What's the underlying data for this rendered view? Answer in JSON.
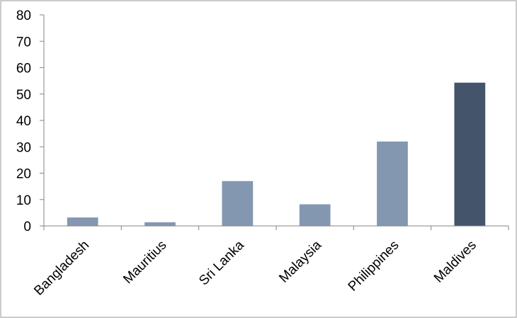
{
  "chart_data": {
    "type": "bar",
    "title": "",
    "xlabel": "",
    "ylabel": "",
    "ylim": [
      0,
      80
    ],
    "yticks": [
      0,
      10,
      20,
      30,
      40,
      50,
      60,
      70,
      80
    ],
    "categories": [
      "Bangladesh",
      "Mauritius",
      "Sri Lanka",
      "Malaysia",
      "Philippines",
      "Maldives"
    ],
    "values": [
      3.2,
      1.4,
      17,
      8.2,
      32,
      54.3
    ],
    "bar_colors": [
      "#8497B0",
      "#8497B0",
      "#8497B0",
      "#8497B0",
      "#8497B0",
      "#44546A"
    ],
    "grid": false,
    "legend": "none"
  }
}
